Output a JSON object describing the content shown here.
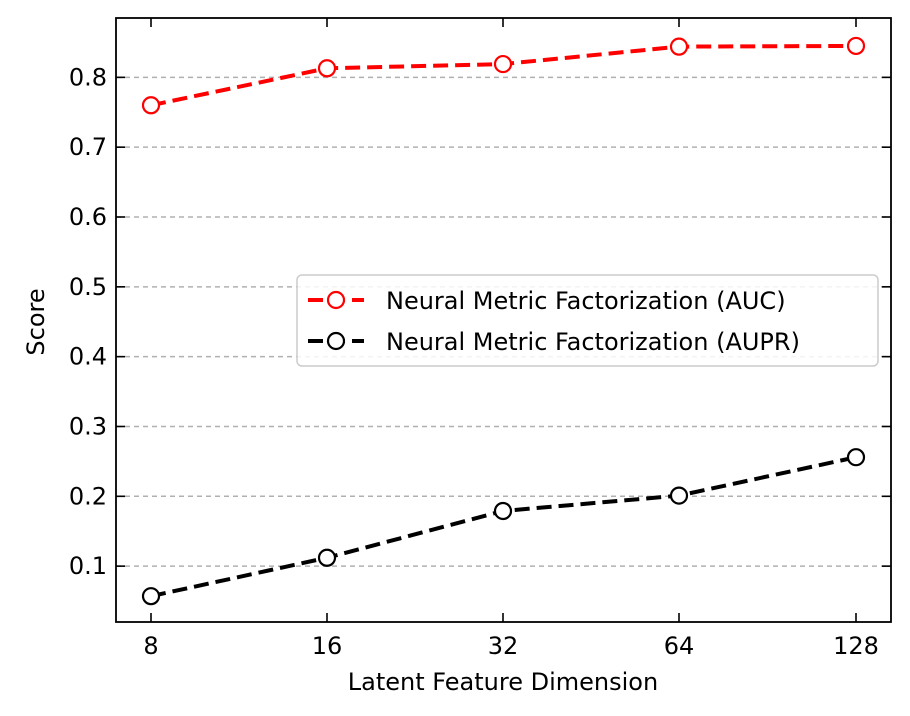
{
  "chart_data": {
    "type": "line",
    "x": [
      8,
      16,
      32,
      64,
      128
    ],
    "x_tick_labels": [
      "8",
      "16",
      "32",
      "64",
      "128"
    ],
    "x_scale": "log2",
    "xlabel": "Latent Feature Dimension",
    "ylabel": "Score",
    "ylim": [
      0.02,
      0.885
    ],
    "y_ticks": [
      0.1,
      0.2,
      0.3,
      0.4,
      0.5,
      0.6,
      0.7,
      0.8
    ],
    "y_tick_labels": [
      "0.1",
      "0.2",
      "0.3",
      "0.4",
      "0.5",
      "0.6",
      "0.7",
      "0.8"
    ],
    "grid": "horizontal-dashed",
    "legend_position": "center-right",
    "series": [
      {
        "name": "Neural Metric Factorization (AUC)",
        "values": [
          0.76,
          0.813,
          0.819,
          0.844,
          0.845
        ],
        "color": "#ff0000",
        "line_style": "dashed",
        "marker": "open-circle"
      },
      {
        "name": "Neural Metric Factorization (AUPR)",
        "values": [
          0.057,
          0.112,
          0.179,
          0.201,
          0.256
        ],
        "color": "#000000",
        "line_style": "dashed",
        "marker": "open-circle"
      }
    ]
  }
}
